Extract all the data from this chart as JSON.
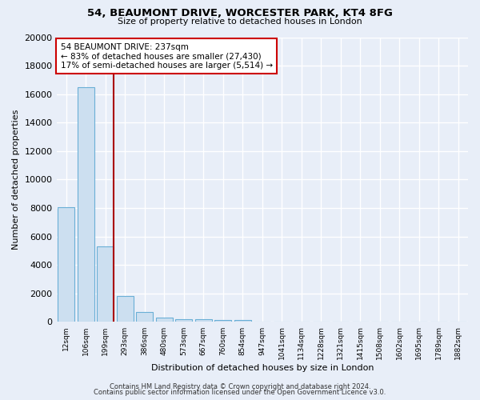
{
  "title": "54, BEAUMONT DRIVE, WORCESTER PARK, KT4 8FG",
  "subtitle": "Size of property relative to detached houses in London",
  "xlabel": "Distribution of detached houses by size in London",
  "ylabel": "Number of detached properties",
  "annotation_title": "54 BEAUMONT DRIVE: 237sqm",
  "annotation_line1": "← 83% of detached houses are smaller (27,430)",
  "annotation_line2": "17% of semi-detached houses are larger (5,514) →",
  "bar_color": "#ccdff0",
  "bar_edge_color": "#6aafd6",
  "marker_color": "#aa0000",
  "annotation_box_color": "#ffffff",
  "annotation_box_edge": "#cc0000",
  "background_color": "#e8eef8",
  "grid_color": "#ffffff",
  "categories": [
    "12sqm",
    "106sqm",
    "199sqm",
    "293sqm",
    "386sqm",
    "480sqm",
    "573sqm",
    "667sqm",
    "760sqm",
    "854sqm",
    "947sqm",
    "1041sqm",
    "1134sqm",
    "1228sqm",
    "1321sqm",
    "1415sqm",
    "1508sqm",
    "1602sqm",
    "1695sqm",
    "1789sqm",
    "1882sqm"
  ],
  "values": [
    8050,
    16500,
    5300,
    1850,
    700,
    330,
    220,
    170,
    150,
    130,
    0,
    0,
    0,
    0,
    0,
    0,
    0,
    0,
    0,
    0,
    0
  ],
  "ylim": [
    0,
    20000
  ],
  "yticks": [
    0,
    2000,
    4000,
    6000,
    8000,
    10000,
    12000,
    14000,
    16000,
    18000,
    20000
  ],
  "footer1": "Contains HM Land Registry data © Crown copyright and database right 2024.",
  "footer2": "Contains public sector information licensed under the Open Government Licence v3.0.",
  "marker_bar_index": 2,
  "marker_side": "right"
}
